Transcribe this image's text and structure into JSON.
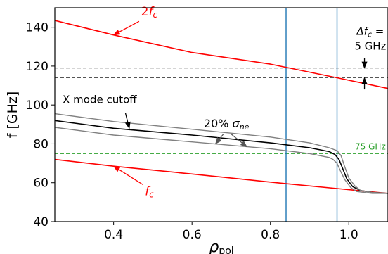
{
  "chart_data": {
    "type": "line",
    "xlabel": "ρ",
    "xlabel_sub": "pol",
    "ylabel": "f [GHz]",
    "xlim": [
      0.25,
      1.1
    ],
    "ylim": [
      40,
      150
    ],
    "xticks": [
      0.4,
      0.6,
      0.8,
      1.0
    ],
    "yticks": [
      40,
      60,
      80,
      100,
      120,
      140
    ],
    "xtick_labels": [
      "0.4",
      "0.6",
      "0.8",
      "1.0"
    ],
    "ytick_labels": [
      "40",
      "60",
      "80",
      "100",
      "120",
      "140"
    ],
    "grid": false,
    "series": [
      {
        "color": "#ff0000",
        "x": [
          0.25,
          0.4,
          0.6,
          0.8,
          0.97,
          1.1
        ],
        "y": [
          143.5,
          136,
          127,
          121,
          114,
          108.5
        ]
      },
      {
        "color": "#ff0000",
        "x": [
          0.25,
          0.4,
          0.6,
          0.84,
          0.97,
          1.1
        ],
        "y": [
          72,
          68.5,
          64.5,
          59.5,
          57,
          54.5
        ]
      },
      {
        "color": "#000000",
        "x": [
          0.25,
          0.4,
          0.6,
          0.8,
          0.9,
          0.95,
          0.965,
          0.975,
          0.985,
          0.995,
          1.01,
          1.03,
          1.06,
          1.1
        ],
        "y": [
          92,
          88,
          84.5,
          80.5,
          78,
          76,
          74.5,
          72,
          67,
          62,
          58,
          56,
          55,
          54.5
        ]
      },
      {
        "color": "#808080",
        "x": [
          0.25,
          0.4,
          0.6,
          0.8,
          0.9,
          0.95,
          0.97,
          0.98,
          0.99,
          1.0,
          1.015,
          1.03,
          1.06,
          1.1
        ],
        "y": [
          95.5,
          91.5,
          87.5,
          83.5,
          80.5,
          78,
          76.5,
          74,
          68,
          62.5,
          58.5,
          56,
          55,
          54.5
        ]
      },
      {
        "color": "#808080",
        "x": [
          0.25,
          0.4,
          0.6,
          0.8,
          0.9,
          0.95,
          0.96,
          0.97,
          0.98,
          0.99,
          1.005,
          1.02,
          1.06,
          1.1
        ],
        "y": [
          88.5,
          84.5,
          81,
          77.5,
          75,
          73,
          72,
          70,
          65.5,
          61.5,
          57.5,
          55.5,
          54.5,
          54.5
        ]
      }
    ],
    "hlines": [
      {
        "y": 119,
        "color": "#555555",
        "style": "dashed"
      },
      {
        "y": 114,
        "color": "#555555",
        "style": "dashed"
      },
      {
        "y": 75,
        "color": "#2ca02c",
        "style": "dashed"
      }
    ],
    "vlines": [
      {
        "x": 0.84,
        "color": "#1f77b4"
      },
      {
        "x": 0.97,
        "color": "#1f77b4"
      }
    ],
    "annotations": {
      "two_fc": {
        "prefix": "2",
        "main": "f",
        "sub": "c",
        "color": "#ff0000",
        "x": 0.47,
        "y": 146,
        "arrow_to": [
          0.4,
          136
        ]
      },
      "fc": {
        "main": "f",
        "sub": "c",
        "color": "#ff0000",
        "x": 0.48,
        "y": 53.5,
        "arrow_to": [
          0.4,
          68.5
        ]
      },
      "x_mode": {
        "text": "X mode cutoff",
        "color": "#000000",
        "x": 0.27,
        "y": 101,
        "arrow_to": [
          0.44,
          88
        ]
      },
      "sigma": {
        "prefix": "20% ",
        "main": "σ",
        "sub": "ne",
        "color": "#000000",
        "x": 0.63,
        "y": 88.5
      },
      "sigma_arrow_upper": {
        "from": [
          0.68,
          85
        ],
        "to": [
          0.66,
          80
        ],
        "color": "#555555"
      },
      "sigma_arrow_lower": {
        "from": [
          0.7,
          85
        ],
        "to": [
          0.74,
          78.5
        ],
        "color": "#555555"
      },
      "delta_fc": {
        "main": "Δf",
        "sub": "c",
        "suffix": " =",
        "line2": "5 GHz",
        "color": "#000000",
        "x": 1.055,
        "y1": 136,
        "y2": 128.5
      },
      "delta_arrow_down": {
        "from": [
          1.04,
          124
        ],
        "to": [
          1.04,
          119
        ]
      },
      "delta_arrow_up": {
        "from": [
          1.04,
          108
        ],
        "to": [
          1.04,
          114
        ]
      },
      "ghz75": {
        "text": "75 GHz",
        "color": "#2ca02c",
        "x": 1.055,
        "y": 77
      }
    }
  }
}
